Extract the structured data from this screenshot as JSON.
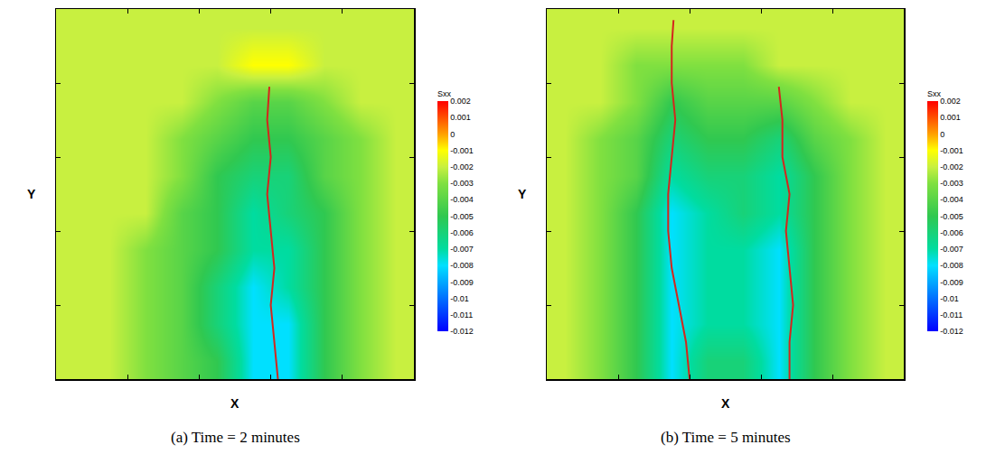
{
  "chart_data": [
    {
      "type": "heatmap",
      "title": "(a) Time = 2 minutes",
      "x_label": "X",
      "y_label": "Y",
      "xlim": [
        0,
        10
      ],
      "ylim": [
        0,
        10
      ],
      "xticks": [
        0,
        2,
        4,
        6,
        8,
        10
      ],
      "yticks": [
        0,
        2,
        4,
        6,
        8,
        10
      ],
      "tick_labels": false,
      "x": [
        0.5,
        1.5,
        2.5,
        3.5,
        4.5,
        5.5,
        6.5,
        7.5,
        8.5,
        9.5
      ],
      "y": [
        0.5,
        1.5,
        2.5,
        3.5,
        4.5,
        5.5,
        6.5,
        7.5,
        8.5,
        9.5
      ],
      "z": [
        [
          -0.002,
          -0.002,
          -0.003,
          -0.004,
          -0.005,
          -0.008,
          -0.008,
          -0.005,
          -0.003,
          -0.002
        ],
        [
          -0.002,
          -0.002,
          -0.003,
          -0.004,
          -0.006,
          -0.008,
          -0.008,
          -0.005,
          -0.003,
          -0.002
        ],
        [
          -0.002,
          -0.002,
          -0.003,
          -0.004,
          -0.006,
          -0.008,
          -0.007,
          -0.005,
          -0.003,
          -0.002
        ],
        [
          -0.002,
          -0.002,
          -0.003,
          -0.004,
          -0.005,
          -0.007,
          -0.007,
          -0.005,
          -0.003,
          -0.002
        ],
        [
          -0.002,
          -0.002,
          -0.002,
          -0.004,
          -0.005,
          -0.007,
          -0.006,
          -0.005,
          -0.003,
          -0.002
        ],
        [
          -0.002,
          -0.002,
          -0.002,
          -0.003,
          -0.005,
          -0.006,
          -0.006,
          -0.004,
          -0.003,
          -0.002
        ],
        [
          -0.002,
          -0.002,
          -0.002,
          -0.003,
          -0.004,
          -0.005,
          -0.005,
          -0.004,
          -0.003,
          -0.002
        ],
        [
          -0.002,
          -0.002,
          -0.002,
          -0.002,
          -0.003,
          -0.004,
          -0.004,
          -0.003,
          -0.002,
          -0.002
        ],
        [
          -0.002,
          -0.002,
          -0.002,
          -0.002,
          -0.002,
          -0.001,
          -0.001,
          -0.002,
          -0.002,
          -0.002
        ],
        [
          -0.002,
          -0.002,
          -0.002,
          -0.002,
          -0.002,
          -0.002,
          -0.002,
          -0.002,
          -0.002,
          -0.002
        ]
      ],
      "colorbar": {
        "title": "Sxx",
        "range": [
          -0.012,
          0.002
        ],
        "ticks": [
          0.002,
          0.001,
          0,
          -0.001,
          -0.002,
          -0.003,
          -0.004,
          -0.005,
          -0.006,
          -0.007,
          -0.008,
          -0.009,
          -0.01,
          -0.011,
          -0.012
        ]
      },
      "cracks": [
        {
          "color": "#d4261c",
          "x": [
            6.2,
            6.1,
            6.0,
            6.1,
            6.0,
            5.9,
            6.0,
            5.9,
            5.96
          ],
          "y": [
            0,
            1,
            2,
            3,
            4,
            5,
            6,
            7,
            7.9
          ]
        }
      ]
    },
    {
      "type": "heatmap",
      "title": "(b) Time = 5 minutes",
      "x_label": "X",
      "y_label": "Y",
      "xlim": [
        0,
        10
      ],
      "ylim": [
        0,
        10
      ],
      "xticks": [
        0,
        2,
        4,
        6,
        8,
        10
      ],
      "yticks": [
        0,
        2,
        4,
        6,
        8,
        10
      ],
      "tick_labels": false,
      "x": [
        0.5,
        1.5,
        2.5,
        3.5,
        4.5,
        5.5,
        6.5,
        7.5,
        8.5,
        9.5
      ],
      "y": [
        0.5,
        1.5,
        2.5,
        3.5,
        4.5,
        5.5,
        6.5,
        7.5,
        8.5,
        9.5
      ],
      "z": [
        [
          -0.002,
          -0.003,
          -0.005,
          -0.008,
          -0.006,
          -0.006,
          -0.008,
          -0.005,
          -0.003,
          -0.002
        ],
        [
          -0.002,
          -0.003,
          -0.005,
          -0.008,
          -0.007,
          -0.007,
          -0.008,
          -0.005,
          -0.003,
          -0.002
        ],
        [
          -0.002,
          -0.003,
          -0.005,
          -0.008,
          -0.007,
          -0.007,
          -0.008,
          -0.005,
          -0.003,
          -0.002
        ],
        [
          -0.002,
          -0.003,
          -0.005,
          -0.008,
          -0.007,
          -0.007,
          -0.008,
          -0.005,
          -0.003,
          -0.002
        ],
        [
          -0.002,
          -0.003,
          -0.005,
          -0.008,
          -0.007,
          -0.006,
          -0.007,
          -0.005,
          -0.003,
          -0.002
        ],
        [
          -0.002,
          -0.003,
          -0.004,
          -0.007,
          -0.006,
          -0.006,
          -0.007,
          -0.005,
          -0.003,
          -0.002
        ],
        [
          -0.002,
          -0.003,
          -0.004,
          -0.006,
          -0.005,
          -0.005,
          -0.006,
          -0.004,
          -0.003,
          -0.002
        ],
        [
          -0.002,
          -0.002,
          -0.003,
          -0.005,
          -0.004,
          -0.004,
          -0.004,
          -0.003,
          -0.002,
          -0.002
        ],
        [
          -0.002,
          -0.002,
          -0.003,
          -0.003,
          -0.003,
          -0.003,
          -0.002,
          -0.002,
          -0.002,
          -0.002
        ],
        [
          -0.002,
          -0.002,
          -0.002,
          -0.002,
          -0.002,
          -0.002,
          -0.002,
          -0.002,
          -0.002,
          -0.002
        ]
      ],
      "colorbar": {
        "title": "Sxx",
        "range": [
          -0.012,
          0.002
        ],
        "ticks": [
          0.002,
          0.001,
          0,
          -0.001,
          -0.002,
          -0.003,
          -0.004,
          -0.005,
          -0.006,
          -0.007,
          -0.008,
          -0.009,
          -0.01,
          -0.011,
          -0.012
        ]
      },
      "cracks": [
        {
          "color": "#d4261c",
          "x": [
            4.0,
            3.9,
            3.7,
            3.5,
            3.4,
            3.4,
            3.5,
            3.6,
            3.5,
            3.5,
            3.55
          ],
          "y": [
            0,
            1,
            2,
            3,
            4,
            5,
            6,
            7,
            8,
            9,
            9.7
          ]
        },
        {
          "color": "#d4261c",
          "x": [
            6.8,
            6.8,
            6.9,
            6.8,
            6.7,
            6.8,
            6.6,
            6.6,
            6.5
          ],
          "y": [
            0,
            1,
            2,
            3,
            4,
            5,
            6,
            7,
            7.9
          ]
        }
      ]
    }
  ]
}
